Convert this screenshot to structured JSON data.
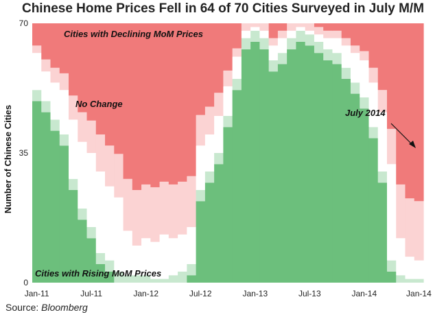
{
  "chart_data": {
    "type": "area",
    "title": "Chinese Home Prices Fell in 64 of 70 Cities Surveyed in July M/M",
    "ylabel": "Number of Chinese Cities",
    "xlabel": "",
    "ylim": [
      0,
      70
    ],
    "y_ticks": [
      "0",
      "35",
      "70"
    ],
    "x_ticks": [
      "Jan-11",
      "Jul-11",
      "Jan-12",
      "Jul-12",
      "Jan-13",
      "Jul-13",
      "Jan-14",
      "Jan-14"
    ],
    "x": [
      "Jan-11",
      "Feb-11",
      "Mar-11",
      "Apr-11",
      "May-11",
      "Jun-11",
      "Jul-11",
      "Aug-11",
      "Sep-11",
      "Oct-11",
      "Nov-11",
      "Dec-11",
      "Jan-12",
      "Feb-12",
      "Mar-12",
      "Apr-12",
      "May-12",
      "Jun-12",
      "Jul-12",
      "Aug-12",
      "Sep-12",
      "Oct-12",
      "Nov-12",
      "Dec-12",
      "Jan-13",
      "Feb-13",
      "Mar-13",
      "Apr-13",
      "May-13",
      "Jun-13",
      "Jul-13",
      "Aug-13",
      "Sep-13",
      "Oct-13",
      "Nov-13",
      "Dec-13",
      "Jan-14",
      "Feb-14",
      "Mar-14",
      "Apr-14",
      "May-14",
      "Jun-14",
      "Jul-14"
    ],
    "rising": [
      52,
      49,
      44,
      40,
      28,
      20,
      15,
      8,
      6,
      3,
      2,
      2,
      2,
      1,
      1,
      2,
      3,
      5,
      25,
      30,
      35,
      45,
      55,
      66,
      68,
      66,
      60,
      62,
      66,
      68,
      67,
      65,
      63,
      62,
      58,
      54,
      50,
      42,
      30,
      6,
      2,
      1,
      1
    ],
    "no_change": [
      10,
      8,
      10,
      12,
      16,
      18,
      20,
      22,
      20,
      20,
      12,
      8,
      10,
      10,
      12,
      10,
      10,
      10,
      12,
      10,
      10,
      8,
      6,
      2,
      1,
      2,
      4,
      4,
      2,
      1,
      1,
      2,
      3,
      4,
      6,
      8,
      10,
      12,
      16,
      26,
      10,
      6,
      5
    ],
    "declining": [
      8,
      13,
      16,
      18,
      26,
      32,
      35,
      40,
      44,
      47,
      56,
      60,
      58,
      59,
      57,
      58,
      57,
      55,
      33,
      30,
      25,
      17,
      9,
      2,
      1,
      2,
      6,
      4,
      2,
      1,
      2,
      3,
      4,
      4,
      6,
      8,
      10,
      16,
      24,
      38,
      58,
      63,
      64
    ],
    "series": [
      {
        "name": "Cities with Rising MoM Prices",
        "color": "#6cbf7c"
      },
      {
        "name": "No Change",
        "color": "#ffffff"
      },
      {
        "name": "Cities with Declining MoM Prices",
        "color": "#f07a7a"
      }
    ],
    "annotations": [
      "Cities with Declining MoM Prices",
      "No Change",
      "July 2014",
      "Cities with Rising MoM Prices"
    ],
    "grid": false
  },
  "source": {
    "label": "Source:",
    "name": "Bloomberg"
  },
  "colors": {
    "green_dark": "#6cbf7c",
    "green_light": "#c8e8cf",
    "red_dark": "#f07a7a",
    "red_light": "#fbd3d3"
  }
}
